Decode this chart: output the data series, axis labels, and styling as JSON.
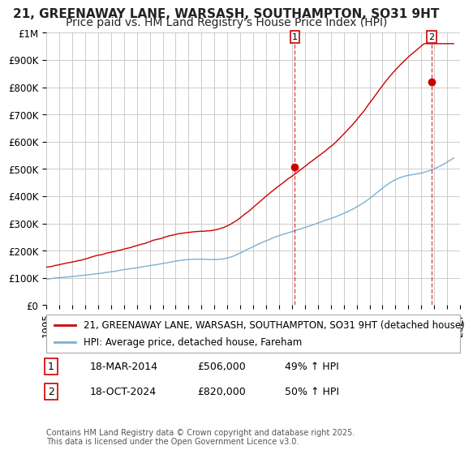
{
  "title1": "21, GREENAWAY LANE, WARSASH, SOUTHAMPTON, SO31 9HT",
  "title2": "Price paid vs. HM Land Registry's House Price Index (HPI)",
  "ylabel_ticks": [
    "£0",
    "£100K",
    "£200K",
    "£300K",
    "£400K",
    "£500K",
    "£600K",
    "£700K",
    "£800K",
    "£900K",
    "£1M"
  ],
  "ytick_vals": [
    0,
    100000,
    200000,
    300000,
    400000,
    500000,
    600000,
    700000,
    800000,
    900000,
    1000000
  ],
  "xlim": [
    1995,
    2027
  ],
  "ylim": [
    0,
    1000000
  ],
  "background_color": "#ffffff",
  "grid_color": "#cccccc",
  "line1_color": "#cc0000",
  "line2_color": "#7ab0d4",
  "marker1_x": 2014.21,
  "marker1_y": 506000,
  "marker2_x": 2024.8,
  "marker2_y": 820000,
  "legend_label1": "21, GREENAWAY LANE, WARSASH, SOUTHAMPTON, SO31 9HT (detached house)",
  "legend_label2": "HPI: Average price, detached house, Fareham",
  "annotation1_num": "1",
  "annotation1_date": "18-MAR-2014",
  "annotation1_price": "£506,000",
  "annotation1_hpi": "49% ↑ HPI",
  "annotation2_num": "2",
  "annotation2_date": "18-OCT-2024",
  "annotation2_price": "£820,000",
  "annotation2_hpi": "50% ↑ HPI",
  "footer": "Contains HM Land Registry data © Crown copyright and database right 2025.\nThis data is licensed under the Open Government Licence v3.0.",
  "title_fontsize": 11,
  "subtitle_fontsize": 10,
  "tick_fontsize": 8.5,
  "legend_fontsize": 8.5,
  "annotation_fontsize": 9
}
